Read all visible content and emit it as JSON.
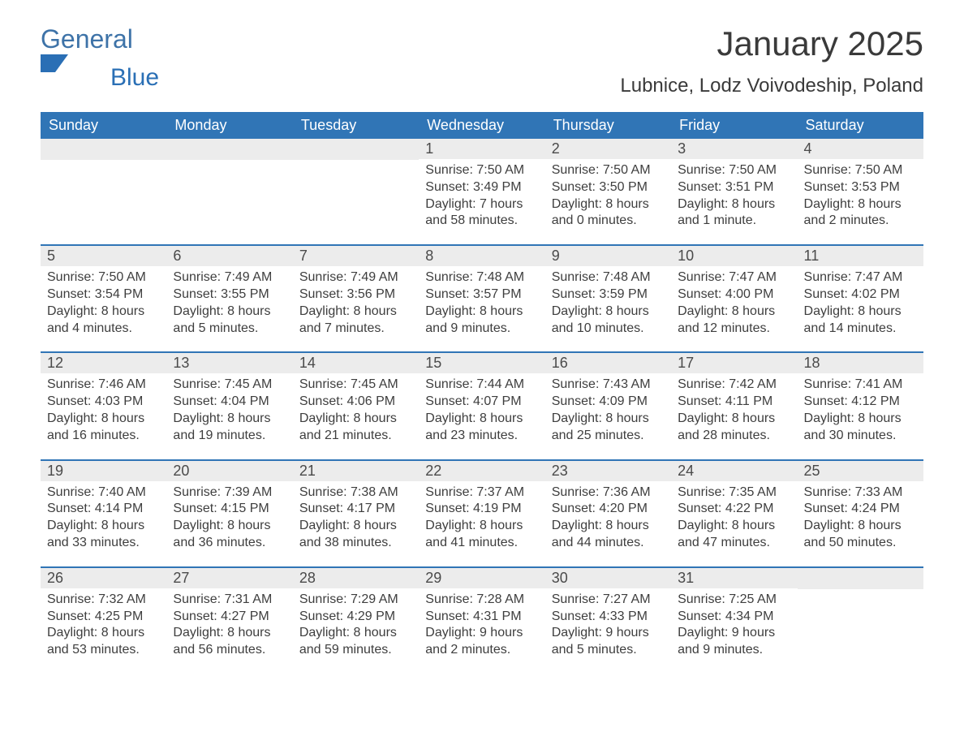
{
  "logo": {
    "text1": "General",
    "text2": "Blue",
    "shape_color": "#2a6fb5"
  },
  "title": "January 2025",
  "location": "Lubnice, Lodz Voivodeship, Poland",
  "colors": {
    "header_bg": "#3075b6",
    "header_text": "#ffffff",
    "daynum_bg": "#ececec",
    "week_border": "#3075b6",
    "body_text": "#3e3e3e"
  },
  "day_headers": [
    "Sunday",
    "Monday",
    "Tuesday",
    "Wednesday",
    "Thursday",
    "Friday",
    "Saturday"
  ],
  "weeks": [
    [
      null,
      null,
      null,
      {
        "num": "1",
        "sunrise": "Sunrise: 7:50 AM",
        "sunset": "Sunset: 3:49 PM",
        "daylight": "Daylight: 7 hours and 58 minutes."
      },
      {
        "num": "2",
        "sunrise": "Sunrise: 7:50 AM",
        "sunset": "Sunset: 3:50 PM",
        "daylight": "Daylight: 8 hours and 0 minutes."
      },
      {
        "num": "3",
        "sunrise": "Sunrise: 7:50 AM",
        "sunset": "Sunset: 3:51 PM",
        "daylight": "Daylight: 8 hours and 1 minute."
      },
      {
        "num": "4",
        "sunrise": "Sunrise: 7:50 AM",
        "sunset": "Sunset: 3:53 PM",
        "daylight": "Daylight: 8 hours and 2 minutes."
      }
    ],
    [
      {
        "num": "5",
        "sunrise": "Sunrise: 7:50 AM",
        "sunset": "Sunset: 3:54 PM",
        "daylight": "Daylight: 8 hours and 4 minutes."
      },
      {
        "num": "6",
        "sunrise": "Sunrise: 7:49 AM",
        "sunset": "Sunset: 3:55 PM",
        "daylight": "Daylight: 8 hours and 5 minutes."
      },
      {
        "num": "7",
        "sunrise": "Sunrise: 7:49 AM",
        "sunset": "Sunset: 3:56 PM",
        "daylight": "Daylight: 8 hours and 7 minutes."
      },
      {
        "num": "8",
        "sunrise": "Sunrise: 7:48 AM",
        "sunset": "Sunset: 3:57 PM",
        "daylight": "Daylight: 8 hours and 9 minutes."
      },
      {
        "num": "9",
        "sunrise": "Sunrise: 7:48 AM",
        "sunset": "Sunset: 3:59 PM",
        "daylight": "Daylight: 8 hours and 10 minutes."
      },
      {
        "num": "10",
        "sunrise": "Sunrise: 7:47 AM",
        "sunset": "Sunset: 4:00 PM",
        "daylight": "Daylight: 8 hours and 12 minutes."
      },
      {
        "num": "11",
        "sunrise": "Sunrise: 7:47 AM",
        "sunset": "Sunset: 4:02 PM",
        "daylight": "Daylight: 8 hours and 14 minutes."
      }
    ],
    [
      {
        "num": "12",
        "sunrise": "Sunrise: 7:46 AM",
        "sunset": "Sunset: 4:03 PM",
        "daylight": "Daylight: 8 hours and 16 minutes."
      },
      {
        "num": "13",
        "sunrise": "Sunrise: 7:45 AM",
        "sunset": "Sunset: 4:04 PM",
        "daylight": "Daylight: 8 hours and 19 minutes."
      },
      {
        "num": "14",
        "sunrise": "Sunrise: 7:45 AM",
        "sunset": "Sunset: 4:06 PM",
        "daylight": "Daylight: 8 hours and 21 minutes."
      },
      {
        "num": "15",
        "sunrise": "Sunrise: 7:44 AM",
        "sunset": "Sunset: 4:07 PM",
        "daylight": "Daylight: 8 hours and 23 minutes."
      },
      {
        "num": "16",
        "sunrise": "Sunrise: 7:43 AM",
        "sunset": "Sunset: 4:09 PM",
        "daylight": "Daylight: 8 hours and 25 minutes."
      },
      {
        "num": "17",
        "sunrise": "Sunrise: 7:42 AM",
        "sunset": "Sunset: 4:11 PM",
        "daylight": "Daylight: 8 hours and 28 minutes."
      },
      {
        "num": "18",
        "sunrise": "Sunrise: 7:41 AM",
        "sunset": "Sunset: 4:12 PM",
        "daylight": "Daylight: 8 hours and 30 minutes."
      }
    ],
    [
      {
        "num": "19",
        "sunrise": "Sunrise: 7:40 AM",
        "sunset": "Sunset: 4:14 PM",
        "daylight": "Daylight: 8 hours and 33 minutes."
      },
      {
        "num": "20",
        "sunrise": "Sunrise: 7:39 AM",
        "sunset": "Sunset: 4:15 PM",
        "daylight": "Daylight: 8 hours and 36 minutes."
      },
      {
        "num": "21",
        "sunrise": "Sunrise: 7:38 AM",
        "sunset": "Sunset: 4:17 PM",
        "daylight": "Daylight: 8 hours and 38 minutes."
      },
      {
        "num": "22",
        "sunrise": "Sunrise: 7:37 AM",
        "sunset": "Sunset: 4:19 PM",
        "daylight": "Daylight: 8 hours and 41 minutes."
      },
      {
        "num": "23",
        "sunrise": "Sunrise: 7:36 AM",
        "sunset": "Sunset: 4:20 PM",
        "daylight": "Daylight: 8 hours and 44 minutes."
      },
      {
        "num": "24",
        "sunrise": "Sunrise: 7:35 AM",
        "sunset": "Sunset: 4:22 PM",
        "daylight": "Daylight: 8 hours and 47 minutes."
      },
      {
        "num": "25",
        "sunrise": "Sunrise: 7:33 AM",
        "sunset": "Sunset: 4:24 PM",
        "daylight": "Daylight: 8 hours and 50 minutes."
      }
    ],
    [
      {
        "num": "26",
        "sunrise": "Sunrise: 7:32 AM",
        "sunset": "Sunset: 4:25 PM",
        "daylight": "Daylight: 8 hours and 53 minutes."
      },
      {
        "num": "27",
        "sunrise": "Sunrise: 7:31 AM",
        "sunset": "Sunset: 4:27 PM",
        "daylight": "Daylight: 8 hours and 56 minutes."
      },
      {
        "num": "28",
        "sunrise": "Sunrise: 7:29 AM",
        "sunset": "Sunset: 4:29 PM",
        "daylight": "Daylight: 8 hours and 59 minutes."
      },
      {
        "num": "29",
        "sunrise": "Sunrise: 7:28 AM",
        "sunset": "Sunset: 4:31 PM",
        "daylight": "Daylight: 9 hours and 2 minutes."
      },
      {
        "num": "30",
        "sunrise": "Sunrise: 7:27 AM",
        "sunset": "Sunset: 4:33 PM",
        "daylight": "Daylight: 9 hours and 5 minutes."
      },
      {
        "num": "31",
        "sunrise": "Sunrise: 7:25 AM",
        "sunset": "Sunset: 4:34 PM",
        "daylight": "Daylight: 9 hours and 9 minutes."
      },
      null
    ]
  ]
}
